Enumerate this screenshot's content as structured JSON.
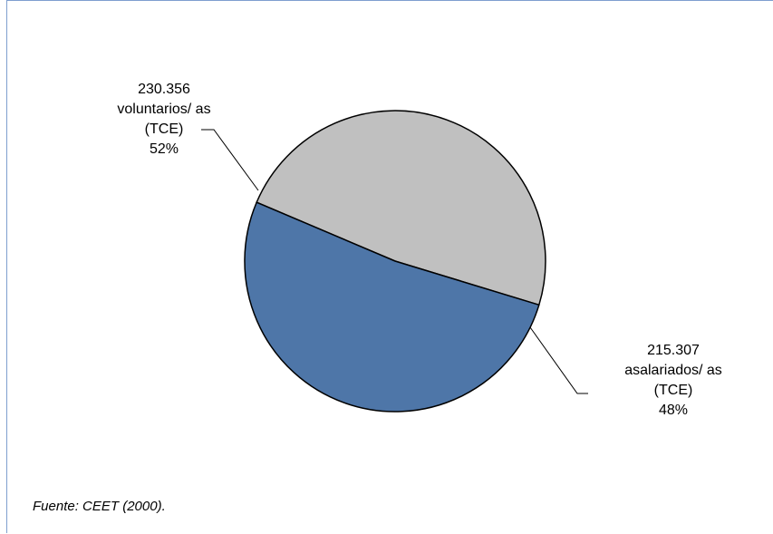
{
  "chart_data": {
    "type": "pie",
    "slices": [
      {
        "label": "voluntarios/ as (TCE)",
        "value": 230356,
        "value_text": "230.356",
        "label_line1": "voluntarios/ as",
        "label_line2": "(TCE)",
        "percent_text": "52%",
        "color": "#4e76a8"
      },
      {
        "label": "asalariados/ as (TCE)",
        "value": 215307,
        "value_text": "215.307",
        "label_line1": "asalariados/ as",
        "label_line2": "(TCE)",
        "percent_text": "48%",
        "color": "#c0c0c0"
      }
    ],
    "legend": "none",
    "stroke_color": "#000000"
  },
  "source_note": "Fuente: CEET (2000)."
}
